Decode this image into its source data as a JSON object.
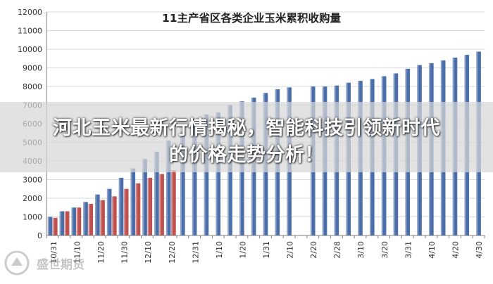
{
  "headline": {
    "line1": "河北玉米最新行情揭秘，智能科技引领新时代",
    "line2": "的价格走势分析！"
  },
  "watermark": {
    "text": "盛世期货"
  },
  "colors": {
    "series_blue": "#4a6ea9",
    "series_red": "#c0504d",
    "grid": "#d9d9d9",
    "axis": "#7f7f7f"
  },
  "chart_data": {
    "type": "bar",
    "title": "11主产省区各类企业玉米累积收购量",
    "xlabel": "",
    "ylabel": "",
    "ylim": [
      0,
      12000
    ],
    "yticks": [
      0,
      1000,
      2000,
      3000,
      4000,
      5000,
      6000,
      7000,
      8000,
      9000,
      10000,
      11000,
      12000
    ],
    "grid": true,
    "xtick_labels": [
      "10/31",
      "11/10",
      "11/20",
      "11/30",
      "12/10",
      "12/20",
      "12/31",
      "1/10",
      "1/20",
      "1/31",
      "2/10",
      "2/20",
      "2/28",
      "3/10",
      "3/20",
      "3/31",
      "4/10",
      "4/20",
      "4/30"
    ],
    "series": [
      {
        "color": "#4a6ea9",
        "values": [
          1000,
          1300,
          1500,
          1800,
          2200,
          2500,
          3100,
          3600,
          4100,
          4500,
          5100,
          5600,
          6100,
          6500,
          6600,
          7000,
          7200,
          7400,
          7650,
          7850,
          7950,
          null,
          8000,
          8000,
          8050,
          8200,
          8300,
          8400,
          8550,
          8700,
          8950,
          9150,
          9250,
          9400,
          9550,
          9700,
          9870
        ]
      },
      {
        "color": "#c0504d",
        "values": [
          950,
          1300,
          1500,
          1700,
          1900,
          2100,
          2500,
          2800,
          3100,
          3300,
          3500,
          null,
          null,
          null,
          null,
          null,
          null,
          null,
          null,
          null,
          null,
          null,
          null,
          null,
          null,
          null,
          null,
          null,
          null,
          null,
          null,
          null,
          null,
          null,
          null,
          null,
          null
        ]
      }
    ]
  }
}
